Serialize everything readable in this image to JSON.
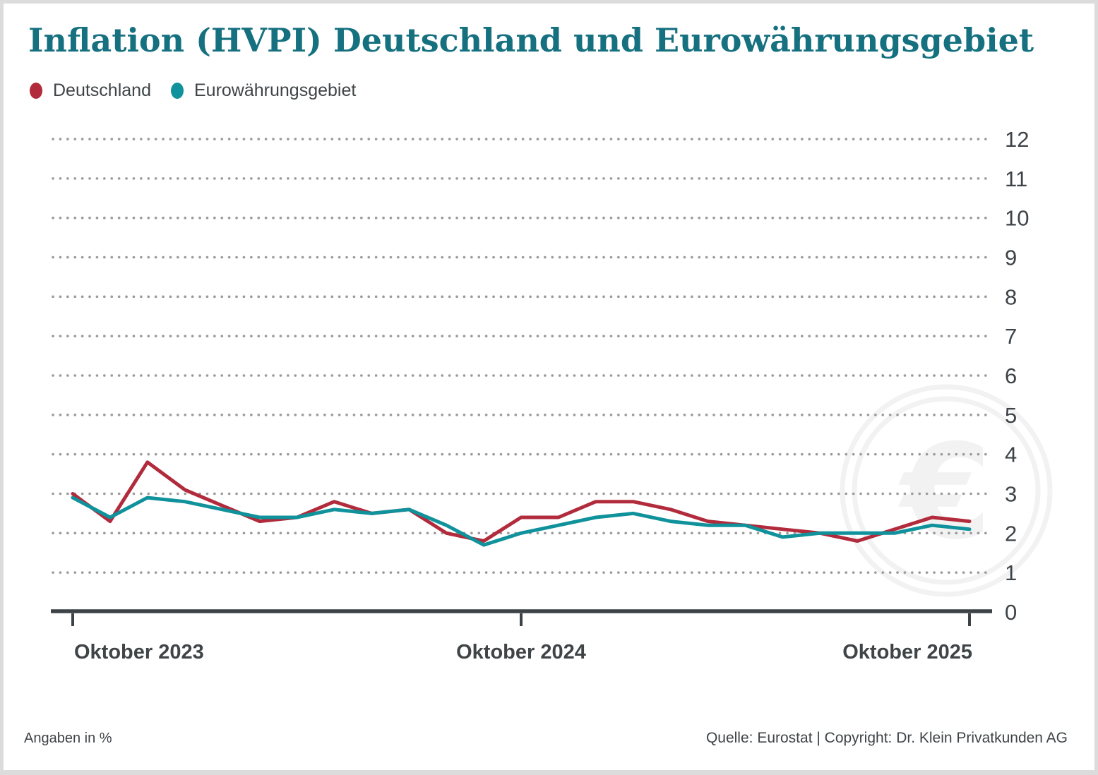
{
  "header": {
    "title": "Inflation (HVPI) Deutschland und Eurowährungsgebiet"
  },
  "legend": {
    "items": [
      {
        "label": "Deutschland",
        "color": "#b12b3c"
      },
      {
        "label": "Eurowährungsgebiet",
        "color": "#0f929b"
      }
    ]
  },
  "footer": {
    "note": "Angaben in %",
    "source": "Quelle: Eurostat | Copyright: Dr. Klein Privatkunden AG"
  },
  "colors": {
    "title": "#15707f",
    "text": "#3f4447",
    "axis": "#3c4247",
    "grid_dots": "#9b9b9b",
    "watermark": "#f2f2f2",
    "card_border": "#dcdcdc",
    "series_deutschland": "#b12b3c",
    "series_eurozone": "#0f929b"
  },
  "chart_data": {
    "type": "line",
    "title": "Inflation (HVPI) Deutschland und Eurowährungsgebiet",
    "unit": "%",
    "months": [
      "Okt 2023",
      "Nov 2023",
      "Dez 2023",
      "Jan 2024",
      "Feb 2024",
      "Mrz 2024",
      "Apr 2024",
      "Mai 2024",
      "Jun 2024",
      "Jul 2024",
      "Aug 2024",
      "Sep 2024",
      "Okt 2024",
      "Nov 2024",
      "Dez 2024",
      "Jan 2025",
      "Feb 2025",
      "Mrz 2025",
      "Apr 2025",
      "Mai 2025",
      "Jun 2025",
      "Jul 2025",
      "Aug 2025",
      "Sep 2025",
      "Okt 2025"
    ],
    "series": [
      {
        "name": "Deutschland",
        "color": "#b12b3c",
        "values": [
          3.0,
          2.3,
          3.8,
          3.1,
          2.7,
          2.3,
          2.4,
          2.8,
          2.5,
          2.6,
          2.0,
          1.8,
          2.4,
          2.4,
          2.8,
          2.8,
          2.6,
          2.3,
          2.2,
          2.1,
          2.0,
          1.8,
          2.1,
          2.4,
          2.3
        ]
      },
      {
        "name": "Eurowährungsgebiet",
        "color": "#0f929b",
        "values": [
          2.9,
          2.4,
          2.9,
          2.8,
          2.6,
          2.4,
          2.4,
          2.6,
          2.5,
          2.6,
          2.2,
          1.7,
          2.0,
          2.2,
          2.4,
          2.5,
          2.3,
          2.2,
          2.2,
          1.9,
          2.0,
          2.0,
          2.0,
          2.2,
          2.1
        ]
      }
    ],
    "xticks": [
      {
        "label": "Oktober 2023",
        "index": 0
      },
      {
        "label": "Oktober 2024",
        "index": 12
      },
      {
        "label": "Oktober 2025",
        "index": 24
      }
    ],
    "yticks": [
      0,
      1,
      2,
      3,
      4,
      5,
      6,
      7,
      8,
      9,
      10,
      11,
      12
    ],
    "ylim": [
      0,
      12
    ],
    "grid": "horizontal-dotted",
    "legend_position": "top-left",
    "watermark": "euro-symbol-in-double-circle"
  }
}
